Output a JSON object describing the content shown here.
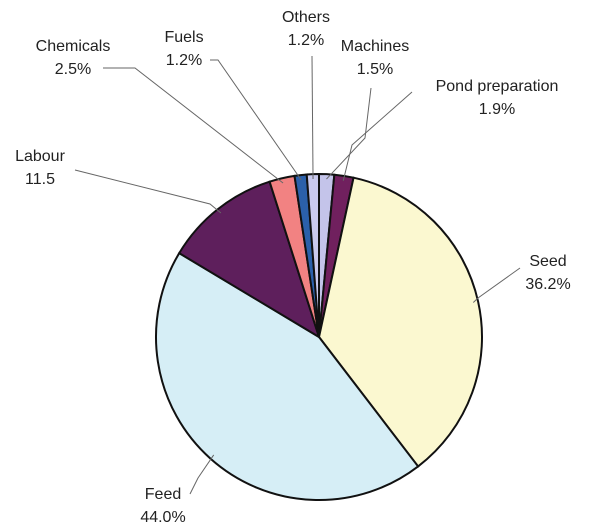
{
  "chart_data": {
    "type": "pie",
    "categories": [
      "Machines",
      "Pond preparation",
      "Seed",
      "Feed",
      "Labour",
      "Chemicals",
      "Fuels",
      "Others"
    ],
    "values": [
      1.5,
      1.9,
      36.2,
      44.0,
      11.5,
      2.5,
      1.2,
      1.2
    ],
    "value_labels": [
      "1.5%",
      "1.9%",
      "36.2%",
      "44.0%",
      "11.5",
      "2.5%",
      "1.2%",
      "1.2%"
    ],
    "colors": [
      "#c4c4ea",
      "#70205e",
      "#fbf8d0",
      "#d6eef6",
      "#5e1f5c",
      "#f28282",
      "#2b60aa",
      "#cacaee"
    ]
  }
}
